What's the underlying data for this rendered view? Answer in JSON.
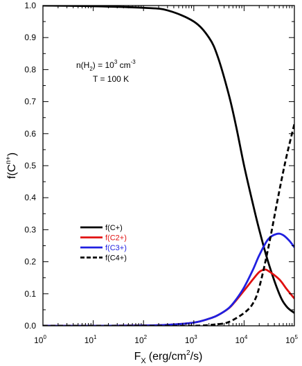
{
  "chart_data": {
    "type": "line",
    "xlabel": "F",
    "xlabel_sub": "X",
    "xlabel_units": "(erg/cm",
    "xlabel_sup": "2",
    "xlabel_tail": "/s)",
    "ylabel": "f(C",
    "ylabel_sup": "n+",
    "ylabel_tail": ")",
    "x_scale": "log",
    "xlim": [
      1,
      100000
    ],
    "ylim": [
      0,
      1.0
    ],
    "x_tick_values": [
      1,
      10,
      100,
      1000,
      10000,
      100000
    ],
    "x_tick_labels": [
      {
        "base": "10",
        "exp": "0"
      },
      {
        "base": "10",
        "exp": "1"
      },
      {
        "base": "10",
        "exp": "2"
      },
      {
        "base": "10",
        "exp": "3"
      },
      {
        "base": "10",
        "exp": "4"
      },
      {
        "base": "10",
        "exp": "5"
      }
    ],
    "y_tick_values": [
      0,
      0.1,
      0.2,
      0.3,
      0.4,
      0.5,
      0.6,
      0.7,
      0.8,
      0.9,
      1.0
    ],
    "y_tick_labels": [
      "0.0",
      "0.1",
      "0.2",
      "0.3",
      "0.4",
      "0.5",
      "0.6",
      "0.7",
      "0.8",
      "0.9",
      "1.0"
    ],
    "grid": false,
    "legend_position": "lower-left",
    "annotation": {
      "line1_a": "n(H",
      "line1_sub": "2",
      "line1_b": ") = 10",
      "line1_sup": "3",
      "line1_c": " cm",
      "line1_sup2": "-3",
      "line2": "T = 100 K"
    },
    "series": [
      {
        "name": "f(C+)",
        "color": "#000000",
        "dash": "solid",
        "x": [
          1,
          10,
          100,
          300,
          1000,
          2000,
          3000,
          5000,
          7000,
          10000,
          15000,
          20000,
          30000,
          50000,
          70000,
          100000
        ],
        "y": [
          1.0,
          0.998,
          0.993,
          0.985,
          0.95,
          0.9,
          0.84,
          0.72,
          0.62,
          0.5,
          0.38,
          0.3,
          0.2,
          0.1,
          0.06,
          0.04
        ]
      },
      {
        "name": "f(C2+)",
        "color": "#e01010",
        "dash": "solid",
        "x": [
          1,
          10,
          100,
          300,
          1000,
          2000,
          3000,
          5000,
          7000,
          10000,
          15000,
          20000,
          25000,
          30000,
          50000,
          70000,
          100000
        ],
        "y": [
          0.0,
          0.0,
          0.001,
          0.003,
          0.01,
          0.022,
          0.033,
          0.055,
          0.08,
          0.11,
          0.145,
          0.168,
          0.175,
          0.172,
          0.145,
          0.115,
          0.085
        ]
      },
      {
        "name": "f(C3+)",
        "color": "#2020e0",
        "dash": "solid",
        "x": [
          1,
          10,
          100,
          300,
          1000,
          2000,
          3000,
          5000,
          7000,
          10000,
          15000,
          20000,
          30000,
          45000,
          60000,
          80000,
          100000
        ],
        "y": [
          0.0,
          0.0,
          0.001,
          0.003,
          0.01,
          0.022,
          0.033,
          0.056,
          0.083,
          0.12,
          0.175,
          0.22,
          0.27,
          0.287,
          0.283,
          0.265,
          0.245
        ]
      },
      {
        "name": "f(C4+)",
        "color": "#000000",
        "dash": "dashed",
        "x": [
          1,
          100,
          1000,
          3000,
          5000,
          10000,
          15000,
          20000,
          30000,
          50000,
          70000,
          100000
        ],
        "y": [
          0.0,
          0.0,
          0.0,
          0.005,
          0.012,
          0.04,
          0.07,
          0.12,
          0.24,
          0.42,
          0.53,
          0.63
        ]
      }
    ]
  }
}
